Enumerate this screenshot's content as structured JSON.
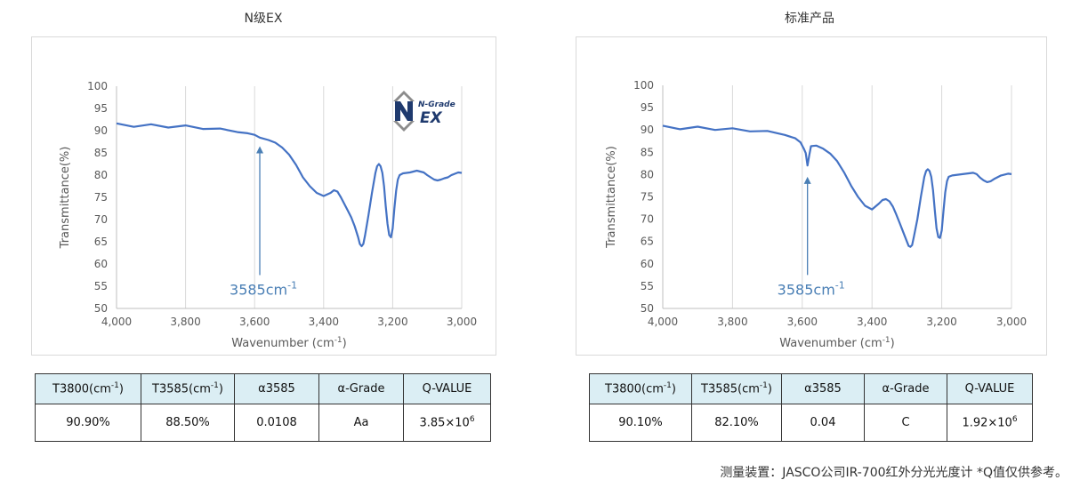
{
  "panels": [
    {
      "title": "N级EX",
      "annotation": {
        "text": "3585cm",
        "sup": "-1",
        "x": 3585,
        "y_from": 57.5,
        "y_to": 86.5
      },
      "logo": {
        "line1": "N-Grade",
        "line2": "EX",
        "icon": "n-grade-ex-logo-icon"
      },
      "table": {
        "headers": [
          {
            "text": "T3800(cm",
            "sup": "-1",
            "tail": ")"
          },
          {
            "text": "T3585(cm",
            "sup": "-1",
            "tail": ")"
          },
          {
            "text": "α3585",
            "sup": "",
            "tail": ""
          },
          {
            "text": "α-Grade",
            "sup": "",
            "tail": ""
          },
          {
            "text": "Q-VALUE",
            "sup": "",
            "tail": ""
          }
        ],
        "values": [
          {
            "text": "90.90%",
            "sup": ""
          },
          {
            "text": "88.50%",
            "sup": ""
          },
          {
            "text": "0.0108",
            "sup": ""
          },
          {
            "text": "Aa",
            "sup": ""
          },
          {
            "text": "3.85×10",
            "sup": "6"
          }
        ]
      }
    },
    {
      "title": "标准产品",
      "annotation": {
        "text": "3585cm",
        "sup": "-1",
        "x": 3585,
        "y_from": 57.5,
        "y_to": 79.5
      },
      "table": {
        "headers": [
          {
            "text": "T3800(cm",
            "sup": "-1",
            "tail": ")"
          },
          {
            "text": "T3585(cm",
            "sup": "-1",
            "tail": ")"
          },
          {
            "text": "α3585",
            "sup": "",
            "tail": ""
          },
          {
            "text": "α-Grade",
            "sup": "",
            "tail": ""
          },
          {
            "text": "Q-VALUE",
            "sup": "",
            "tail": ""
          }
        ],
        "values": [
          {
            "text": "90.10%",
            "sup": ""
          },
          {
            "text": "82.10%",
            "sup": ""
          },
          {
            "text": "0.04",
            "sup": ""
          },
          {
            "text": "C",
            "sup": ""
          },
          {
            "text": "1.92×10",
            "sup": "6"
          }
        ]
      }
    }
  ],
  "chart_data": [
    {
      "type": "line",
      "title": "N级EX",
      "xlabel": "Wavenumber (cm-1)",
      "ylabel": "Transmittance(%)",
      "xlim": [
        4000,
        3000
      ],
      "ylim": [
        50,
        100
      ],
      "x_reversed": true,
      "x_ticks": [
        "4,000",
        "3,800",
        "3,600",
        "3,400",
        "3,200",
        "3,000"
      ],
      "y_ticks": [
        "100",
        "95",
        "90",
        "85",
        "80",
        "75",
        "70",
        "65",
        "60",
        "55",
        "50"
      ],
      "grid": "vertical",
      "color": "#4472c4",
      "series": [
        {
          "x": [
            4000,
            3950,
            3900,
            3850,
            3800,
            3750,
            3700,
            3650,
            3620,
            3600,
            3585,
            3560,
            3540,
            3520,
            3500,
            3480,
            3460,
            3440,
            3420,
            3400,
            3380,
            3370,
            3360,
            3350,
            3340,
            3330,
            3320,
            3310,
            3300,
            3295,
            3290,
            3285,
            3280,
            3270,
            3260,
            3250,
            3245,
            3240,
            3235,
            3230,
            3225,
            3220,
            3215,
            3210,
            3205,
            3200,
            3195,
            3190,
            3185,
            3180,
            3170,
            3160,
            3150,
            3140,
            3130,
            3120,
            3110,
            3100,
            3090,
            3080,
            3070,
            3060,
            3050,
            3040,
            3030,
            3020,
            3010,
            3000
          ],
          "y": [
            91.3,
            91.2,
            91.1,
            91.0,
            90.9,
            90.6,
            90.3,
            89.8,
            89.3,
            89.0,
            88.5,
            87.9,
            87.3,
            86.2,
            84.6,
            82.3,
            79.5,
            77.5,
            76.0,
            75.3,
            76.0,
            76.6,
            76.3,
            75.0,
            73.5,
            72.0,
            70.5,
            68.5,
            66.0,
            64.5,
            64.0,
            64.5,
            66.5,
            71.0,
            76.0,
            80.5,
            82.0,
            82.5,
            82.0,
            80.5,
            77.5,
            73.0,
            69.0,
            66.5,
            66.0,
            68.0,
            72.5,
            76.5,
            79.0,
            80.0,
            80.4,
            80.5,
            80.6,
            80.8,
            81.0,
            80.8,
            80.6,
            80.0,
            79.5,
            79.0,
            78.8,
            79.0,
            79.3,
            79.5,
            80.0,
            80.3,
            80.6,
            80.5
          ]
        }
      ]
    },
    {
      "type": "line",
      "title": "标准产品",
      "xlabel": "Wavenumber (cm-1)",
      "ylabel": "Transmittance(%)",
      "xlim": [
        4000,
        3000
      ],
      "ylim": [
        50,
        100
      ],
      "x_reversed": true,
      "x_ticks": [
        "4,000",
        "3,800",
        "3,600",
        "3,400",
        "3,200",
        "3,000"
      ],
      "y_ticks": [
        "100",
        "95",
        "90",
        "85",
        "80",
        "75",
        "70",
        "65",
        "60",
        "55",
        "50"
      ],
      "grid": "vertical",
      "color": "#4472c4",
      "series": [
        {
          "x": [
            4000,
            3950,
            3900,
            3850,
            3800,
            3750,
            3700,
            3650,
            3620,
            3605,
            3595,
            3590,
            3585,
            3580,
            3575,
            3570,
            3560,
            3540,
            3520,
            3500,
            3480,
            3460,
            3440,
            3420,
            3400,
            3380,
            3370,
            3360,
            3350,
            3340,
            3330,
            3320,
            3310,
            3300,
            3295,
            3290,
            3285,
            3280,
            3270,
            3260,
            3250,
            3245,
            3240,
            3235,
            3230,
            3225,
            3220,
            3215,
            3210,
            3205,
            3200,
            3195,
            3190,
            3185,
            3180,
            3170,
            3160,
            3150,
            3140,
            3130,
            3120,
            3110,
            3100,
            3090,
            3080,
            3070,
            3060,
            3050,
            3040,
            3030,
            3020,
            3010,
            3000
          ],
          "y": [
            90.6,
            90.5,
            90.4,
            90.3,
            90.1,
            89.9,
            89.6,
            89.0,
            88.0,
            87.0,
            86.0,
            84.5,
            82.1,
            84.5,
            86.0,
            86.6,
            86.5,
            85.8,
            84.7,
            83.0,
            80.5,
            77.5,
            75.0,
            73.0,
            72.2,
            73.5,
            74.3,
            74.5,
            74.0,
            72.8,
            71.0,
            69.0,
            67.0,
            65.0,
            64.0,
            63.8,
            64.2,
            66.0,
            70.0,
            75.0,
            79.5,
            80.8,
            81.2,
            80.8,
            79.5,
            76.5,
            72.0,
            68.0,
            66.0,
            65.8,
            67.5,
            72.0,
            76.0,
            78.5,
            79.5,
            79.8,
            79.9,
            80.0,
            80.1,
            80.2,
            80.3,
            80.4,
            80.1,
            79.3,
            78.7,
            78.3,
            78.5,
            79.0,
            79.4,
            79.8,
            80.0,
            80.2,
            80.1
          ]
        }
      ]
    }
  ],
  "footer": "测量装置：JASCO公司IR-700红外分光光度计  *Q值仅供参考。"
}
